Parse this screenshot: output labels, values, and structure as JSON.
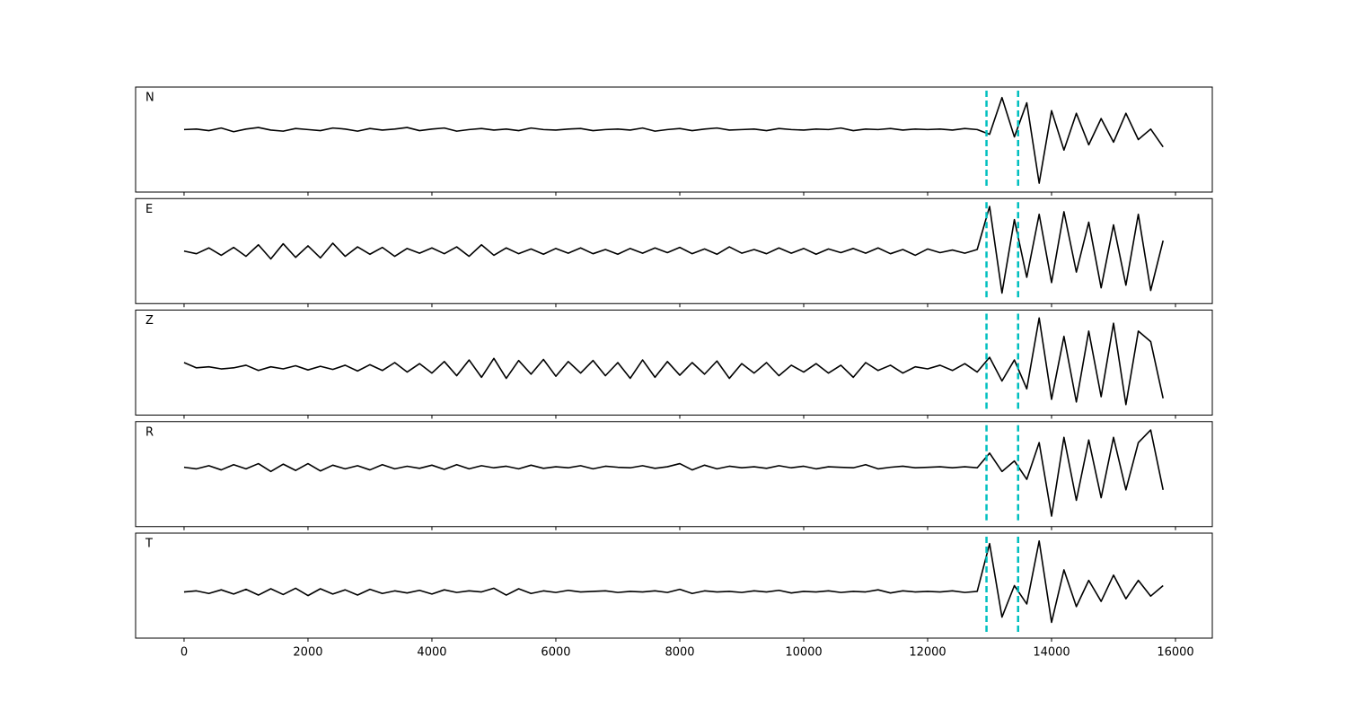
{
  "chart_data": {
    "type": "line",
    "x": [
      0,
      200,
      400,
      600,
      800,
      1000,
      1200,
      1400,
      1600,
      1800,
      2000,
      2200,
      2400,
      2600,
      2800,
      3000,
      3200,
      3400,
      3600,
      3800,
      4000,
      4200,
      4400,
      4600,
      4800,
      5000,
      5200,
      5400,
      5600,
      5800,
      6000,
      6200,
      6400,
      6600,
      6800,
      7000,
      7200,
      7400,
      7600,
      7800,
      8000,
      8200,
      8400,
      8600,
      8800,
      9000,
      9200,
      9400,
      9600,
      9800,
      10000,
      10200,
      10400,
      10600,
      10800,
      11000,
      11200,
      11400,
      11600,
      11800,
      12000,
      12200,
      12400,
      12600,
      12800,
      13000,
      13200,
      13400,
      13600,
      13800,
      14000,
      14200,
      14400,
      14600,
      14800,
      15000,
      15200,
      15400,
      15600,
      15800
    ],
    "series": [
      {
        "name": "N",
        "color": "#000000",
        "values": [
          0.19,
          0.2,
          0.17,
          0.22,
          0.15,
          0.2,
          0.23,
          0.18,
          0.16,
          0.21,
          0.19,
          0.17,
          0.22,
          0.2,
          0.16,
          0.21,
          0.18,
          0.2,
          0.23,
          0.17,
          0.2,
          0.22,
          0.16,
          0.19,
          0.21,
          0.18,
          0.2,
          0.17,
          0.22,
          0.19,
          0.18,
          0.2,
          0.21,
          0.17,
          0.19,
          0.2,
          0.18,
          0.22,
          0.16,
          0.19,
          0.21,
          0.17,
          0.2,
          0.22,
          0.18,
          0.19,
          0.2,
          0.17,
          0.21,
          0.19,
          0.18,
          0.2,
          0.19,
          0.22,
          0.17,
          0.2,
          0.19,
          0.21,
          0.18,
          0.2,
          0.19,
          0.2,
          0.18,
          0.21,
          0.19,
          0.1,
          0.8,
          0.05,
          0.7,
          -0.83,
          0.55,
          -0.2,
          0.5,
          -0.1,
          0.4,
          -0.05,
          0.5,
          0.0,
          0.2,
          -0.14
        ]
      },
      {
        "name": "E",
        "color": "#000000",
        "values": [
          0.0,
          -0.05,
          0.06,
          -0.08,
          0.07,
          -0.1,
          0.12,
          -0.15,
          0.14,
          -0.12,
          0.1,
          -0.13,
          0.15,
          -0.1,
          0.08,
          -0.06,
          0.07,
          -0.1,
          0.05,
          -0.04,
          0.06,
          -0.05,
          0.08,
          -0.1,
          0.12,
          -0.08,
          0.06,
          -0.05,
          0.04,
          -0.06,
          0.05,
          -0.04,
          0.06,
          -0.05,
          0.03,
          -0.06,
          0.05,
          -0.04,
          0.06,
          -0.03,
          0.07,
          -0.05,
          0.04,
          -0.06,
          0.08,
          -0.04,
          0.03,
          -0.05,
          0.06,
          -0.04,
          0.05,
          -0.06,
          0.04,
          -0.03,
          0.05,
          -0.04,
          0.06,
          -0.05,
          0.03,
          -0.08,
          0.04,
          -0.03,
          0.02,
          -0.04,
          0.03,
          0.85,
          -0.8,
          0.6,
          -0.5,
          0.7,
          -0.6,
          0.75,
          -0.4,
          0.55,
          -0.7,
          0.5,
          -0.65,
          0.7,
          -0.75,
          0.2
        ]
      },
      {
        "name": "Z",
        "color": "#000000",
        "values": [
          0.0,
          -0.1,
          -0.08,
          -0.12,
          -0.1,
          -0.05,
          -0.15,
          -0.08,
          -0.12,
          -0.06,
          -0.14,
          -0.07,
          -0.13,
          -0.05,
          -0.16,
          -0.04,
          -0.15,
          0.0,
          -0.18,
          -0.02,
          -0.2,
          0.02,
          -0.25,
          0.05,
          -0.28,
          0.08,
          -0.3,
          0.04,
          -0.22,
          0.06,
          -0.26,
          0.02,
          -0.2,
          0.04,
          -0.25,
          0.0,
          -0.3,
          0.05,
          -0.28,
          0.02,
          -0.24,
          0.0,
          -0.22,
          0.03,
          -0.3,
          -0.02,
          -0.2,
          0.0,
          -0.25,
          -0.05,
          -0.18,
          -0.02,
          -0.2,
          -0.05,
          -0.28,
          0.0,
          -0.15,
          -0.05,
          -0.2,
          -0.08,
          -0.12,
          -0.05,
          -0.15,
          -0.02,
          -0.18,
          0.1,
          -0.35,
          0.05,
          -0.5,
          0.85,
          -0.7,
          0.5,
          -0.75,
          0.6,
          -0.65,
          0.75,
          -0.8,
          0.6,
          0.4,
          -0.68
        ]
      },
      {
        "name": "R",
        "color": "#000000",
        "values": [
          0.13,
          0.1,
          0.16,
          0.08,
          0.18,
          0.1,
          0.2,
          0.05,
          0.19,
          0.07,
          0.2,
          0.06,
          0.17,
          0.1,
          0.16,
          0.08,
          0.18,
          0.1,
          0.15,
          0.11,
          0.17,
          0.09,
          0.18,
          0.1,
          0.16,
          0.12,
          0.15,
          0.1,
          0.17,
          0.11,
          0.14,
          0.12,
          0.16,
          0.1,
          0.15,
          0.13,
          0.12,
          0.16,
          0.11,
          0.14,
          0.2,
          0.08,
          0.17,
          0.1,
          0.15,
          0.12,
          0.14,
          0.11,
          0.16,
          0.12,
          0.15,
          0.1,
          0.14,
          0.13,
          0.12,
          0.18,
          0.1,
          0.13,
          0.15,
          0.12,
          0.13,
          0.14,
          0.12,
          0.14,
          0.12,
          0.4,
          0.05,
          0.25,
          -0.1,
          0.6,
          -0.8,
          0.7,
          -0.5,
          0.65,
          -0.45,
          0.7,
          -0.3,
          0.6,
          0.84,
          -0.3
        ]
      },
      {
        "name": "T",
        "color": "#000000",
        "values": [
          -0.12,
          -0.1,
          -0.15,
          -0.08,
          -0.16,
          -0.07,
          -0.18,
          -0.06,
          -0.17,
          -0.05,
          -0.19,
          -0.06,
          -0.16,
          -0.08,
          -0.18,
          -0.07,
          -0.15,
          -0.1,
          -0.14,
          -0.09,
          -0.16,
          -0.08,
          -0.13,
          -0.1,
          -0.12,
          -0.05,
          -0.18,
          -0.06,
          -0.15,
          -0.1,
          -0.13,
          -0.09,
          -0.12,
          -0.11,
          -0.1,
          -0.13,
          -0.11,
          -0.12,
          -0.1,
          -0.13,
          -0.07,
          -0.15,
          -0.1,
          -0.12,
          -0.11,
          -0.13,
          -0.1,
          -0.12,
          -0.09,
          -0.14,
          -0.11,
          -0.12,
          -0.1,
          -0.13,
          -0.11,
          -0.12,
          -0.08,
          -0.14,
          -0.1,
          -0.12,
          -0.11,
          -0.12,
          -0.1,
          -0.13,
          -0.11,
          0.8,
          -0.6,
          0.0,
          -0.35,
          0.85,
          -0.7,
          0.3,
          -0.4,
          0.1,
          -0.3,
          0.2,
          -0.25,
          0.1,
          -0.2,
          0.0
        ]
      }
    ],
    "xlim": [
      -782,
      16594
    ],
    "xticks": [
      0,
      2000,
      4000,
      6000,
      8000,
      10000,
      12000,
      14000,
      16000
    ],
    "ylim": [
      -1,
      1
    ],
    "vlines": [
      12950,
      13460
    ],
    "vline_color": "#00bfbf"
  }
}
